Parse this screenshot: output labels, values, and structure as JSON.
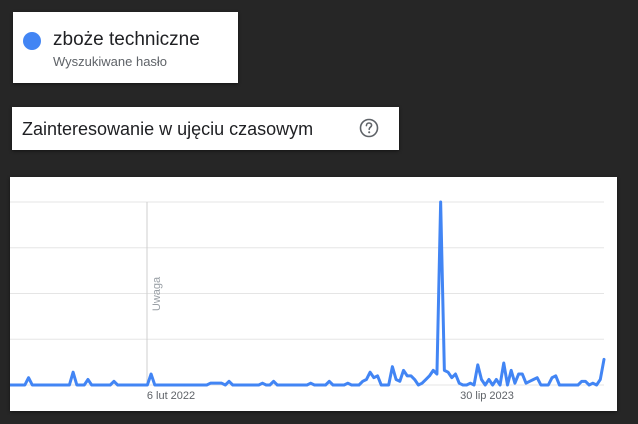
{
  "term": {
    "title": "zboże techniczne",
    "subtitle": "Wyszukiwane hasło",
    "color": "#4285f4"
  },
  "interest": {
    "title": "Zainteresowanie w ujęciu czasowym",
    "help_icon": "help-circle-icon"
  },
  "chart_data": {
    "type": "line",
    "title": "",
    "xlabel": "",
    "ylabel": "",
    "ylim": [
      0,
      100
    ],
    "grid": true,
    "x_ticks": [
      "6 lut 2022",
      "30 lip 2023"
    ],
    "annotation": "Uwaga",
    "series": [
      {
        "color": "#4285f4",
        "values": [
          0,
          0,
          0,
          0,
          0,
          4,
          0,
          0,
          0,
          0,
          0,
          0,
          0,
          0,
          0,
          0,
          0,
          7,
          0,
          0,
          0,
          3,
          0,
          0,
          0,
          0,
          0,
          0,
          2,
          0,
          0,
          0,
          0,
          0,
          0,
          0,
          0,
          0,
          6,
          0,
          0,
          0,
          0,
          0,
          0,
          0,
          0,
          0,
          0,
          0,
          0,
          0,
          0,
          0,
          1,
          1,
          1,
          1,
          0,
          2,
          0,
          0,
          0,
          0,
          0,
          0,
          0,
          0,
          1,
          0,
          0,
          2,
          0,
          0,
          0,
          0,
          0,
          0,
          0,
          0,
          0,
          1,
          0,
          0,
          0,
          0,
          2,
          0,
          0,
          0,
          0,
          1,
          0,
          0,
          0,
          2,
          3,
          7,
          4,
          5,
          0,
          0,
          0,
          10,
          3,
          2,
          8,
          5,
          5,
          3,
          0,
          1,
          3,
          5,
          8,
          6,
          100,
          8,
          7,
          4,
          6,
          1,
          0,
          0,
          1,
          0,
          11,
          3,
          0,
          3,
          0,
          3,
          0,
          12,
          0,
          8,
          1,
          6,
          6,
          1,
          2,
          3,
          4,
          0,
          0,
          0,
          4,
          5,
          0,
          0,
          0,
          0,
          0,
          0,
          2,
          2,
          0,
          1,
          0,
          3,
          14
        ]
      }
    ]
  }
}
